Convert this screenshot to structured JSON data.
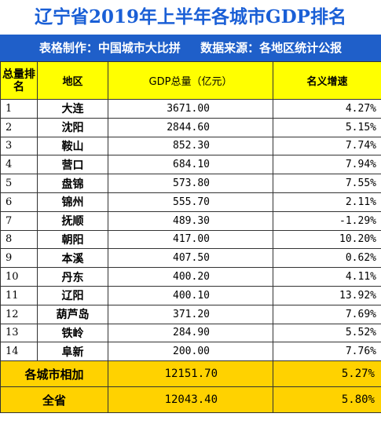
{
  "title": "辽宁省2019年上半年各城市GDP排名",
  "subtitle": {
    "maker": "表格制作：中国城市大比拼",
    "source": "数据来源：各地区统计公报"
  },
  "headers": {
    "rank": "总量排名",
    "region": "地区",
    "gdp": "GDP总量（亿元）",
    "growth": "名义增速"
  },
  "rows": [
    {
      "rank": "1",
      "region": "大连",
      "gdp": "3671.00",
      "growth": "4.27%"
    },
    {
      "rank": "2",
      "region": "沈阳",
      "gdp": "2844.60",
      "growth": "5.15%"
    },
    {
      "rank": "3",
      "region": "鞍山",
      "gdp": "852.30",
      "growth": "7.74%"
    },
    {
      "rank": "4",
      "region": "营口",
      "gdp": "684.10",
      "growth": "7.94%"
    },
    {
      "rank": "5",
      "region": "盘锦",
      "gdp": "573.80",
      "growth": "7.55%"
    },
    {
      "rank": "6",
      "region": "锦州",
      "gdp": "555.70",
      "growth": "2.11%"
    },
    {
      "rank": "7",
      "region": "抚顺",
      "gdp": "489.30",
      "growth": "-1.29%"
    },
    {
      "rank": "8",
      "region": "朝阳",
      "gdp": "417.00",
      "growth": "10.20%"
    },
    {
      "rank": "9",
      "region": "本溪",
      "gdp": "407.50",
      "growth": "0.62%"
    },
    {
      "rank": "10",
      "region": "丹东",
      "gdp": "400.20",
      "growth": "4.11%"
    },
    {
      "rank": "11",
      "region": "辽阳",
      "gdp": "400.10",
      "growth": "13.92%"
    },
    {
      "rank": "12",
      "region": "葫芦岛",
      "gdp": "371.20",
      "growth": "7.69%"
    },
    {
      "rank": "13",
      "region": "铁岭",
      "gdp": "284.90",
      "growth": "5.52%"
    },
    {
      "rank": "14",
      "region": "阜新",
      "gdp": "200.00",
      "growth": "7.76%"
    }
  ],
  "totals": [
    {
      "label": "各城市相加",
      "gdp": "12151.70",
      "growth": "5.27%"
    },
    {
      "label": "全省",
      "gdp": "12043.40",
      "growth": "5.80%"
    }
  ],
  "colors": {
    "title": "#1a5fd6",
    "subtitle_bg": "#1f5fc9",
    "header_bg": "#ffff00",
    "total_bg": "#ffd200"
  }
}
